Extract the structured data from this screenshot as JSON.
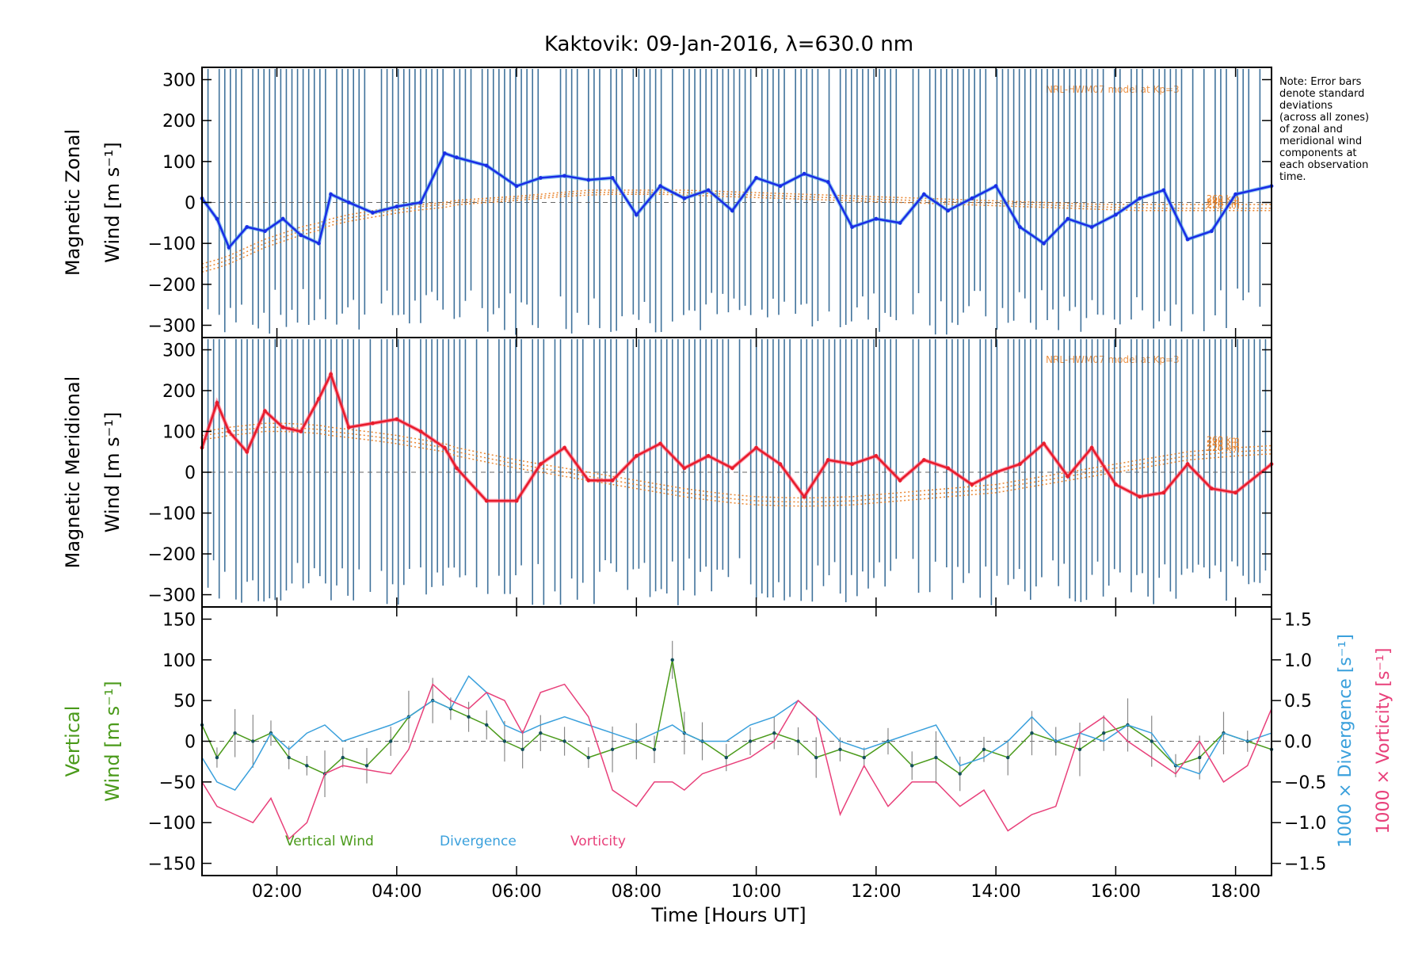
{
  "figure": {
    "title": "Kaktovik: 09-Jan-2016, λ=630.0 nm",
    "note": [
      "Note: Error bars",
      "denote standard",
      "deviations",
      "(across all zones)",
      "of zonal and",
      "meridional wind",
      "components at",
      "each observation",
      "time."
    ],
    "xlabel": "Time [Hours UT]",
    "xticks": [
      "02:00",
      "04:00",
      "06:00",
      "08:00",
      "10:00",
      "12:00",
      "14:00",
      "16:00",
      "18:00"
    ],
    "xlim_hours": [
      0.75,
      18.6
    ],
    "model_label": "NRL-HWM07 model at Kp=3",
    "model_alt_labels": [
      "260 km",
      "240 km",
      "220 km"
    ],
    "colors": {
      "zonal": "#1a2ee6",
      "zonal_alt": "#4aa8e8",
      "meridional": "#e81c2c",
      "meridional_alt": "#ff5a78",
      "errorbar": "#1f5a8a",
      "model": "#e87a1c",
      "vertical": "#4a9a1a",
      "divergence": "#3aa0dc",
      "vorticity": "#e8407a"
    }
  },
  "chart_data": [
    {
      "type": "line",
      "panel": "zonal",
      "ylabel": [
        "Magnetic Zonal",
        "Wind [m s⁻¹]"
      ],
      "ylim": [
        -330,
        330
      ],
      "yticks": [
        "300",
        "200",
        "100",
        "0",
        "−100",
        "−200",
        "−300"
      ],
      "ytick_values": [
        300,
        200,
        100,
        0,
        -100,
        -200,
        -300
      ],
      "x_hours": [
        0.75,
        1.0,
        1.2,
        1.5,
        1.8,
        2.1,
        2.4,
        2.7,
        2.9,
        3.2,
        3.6,
        4.0,
        4.4,
        4.8,
        5.0,
        5.5,
        6.0,
        6.4,
        6.8,
        7.2,
        7.6,
        8.0,
        8.4,
        8.8,
        9.2,
        9.6,
        10.0,
        10.4,
        10.8,
        11.2,
        11.6,
        12.0,
        12.4,
        12.8,
        13.2,
        13.6,
        14.0,
        14.4,
        14.8,
        15.2,
        15.6,
        16.0,
        16.4,
        16.8,
        17.2,
        17.6,
        18.0,
        18.6
      ],
      "values": [
        10,
        -40,
        -110,
        -60,
        -70,
        -40,
        -80,
        -100,
        20,
        0,
        -25,
        -10,
        0,
        120,
        110,
        90,
        40,
        60,
        65,
        55,
        60,
        -30,
        40,
        10,
        30,
        -20,
        60,
        40,
        70,
        50,
        -60,
        -40,
        -50,
        20,
        -20,
        10,
        40,
        -60,
        -100,
        -40,
        -60,
        -30,
        10,
        30,
        -90,
        -70,
        20,
        40
      ],
      "model_series": [
        {
          "name": "260 km",
          "values": [
            -150,
            -140,
            -130,
            -110,
            -90,
            -75,
            -60,
            -50,
            -40,
            -30,
            -20,
            -10,
            -5,
            0,
            5,
            10,
            15,
            20,
            25,
            30,
            30,
            30,
            30,
            30,
            28,
            26,
            24,
            22,
            20,
            18,
            16,
            14,
            12,
            10,
            8,
            6,
            4,
            2,
            0,
            -2,
            -4,
            -5,
            -5,
            -5,
            -5,
            -5,
            -5,
            -5
          ]
        },
        {
          "name": "240 km",
          "values": [
            -160,
            -150,
            -140,
            -120,
            -100,
            -85,
            -70,
            -60,
            -48,
            -38,
            -28,
            -18,
            -10,
            -5,
            0,
            5,
            10,
            15,
            20,
            24,
            25,
            25,
            25,
            24,
            22,
            20,
            18,
            16,
            14,
            12,
            10,
            8,
            6,
            4,
            2,
            0,
            -2,
            -4,
            -6,
            -8,
            -10,
            -12,
            -13,
            -14,
            -14,
            -14,
            -14,
            -14
          ]
        },
        {
          "name": "220 km",
          "values": [
            -170,
            -160,
            -150,
            -130,
            -110,
            -95,
            -80,
            -68,
            -56,
            -46,
            -36,
            -26,
            -18,
            -12,
            -6,
            0,
            5,
            10,
            15,
            18,
            20,
            20,
            20,
            18,
            16,
            14,
            12,
            10,
            8,
            6,
            4,
            2,
            0,
            -2,
            -4,
            -6,
            -8,
            -10,
            -12,
            -14,
            -16,
            -18,
            -20,
            -20,
            -20,
            -20,
            -20,
            -20
          ]
        }
      ]
    },
    {
      "type": "line",
      "panel": "meridional",
      "ylabel": [
        "Magnetic Meridional",
        "Wind [m s⁻¹]"
      ],
      "ylim": [
        -330,
        330
      ],
      "yticks": [
        "300",
        "200",
        "100",
        "0",
        "−100",
        "−200",
        "−300"
      ],
      "ytick_values": [
        300,
        200,
        100,
        0,
        -100,
        -200,
        -300
      ],
      "x_hours": [
        0.75,
        1.0,
        1.2,
        1.5,
        1.8,
        2.1,
        2.4,
        2.7,
        2.9,
        3.2,
        3.6,
        4.0,
        4.4,
        4.8,
        5.0,
        5.5,
        6.0,
        6.4,
        6.8,
        7.2,
        7.6,
        8.0,
        8.4,
        8.8,
        9.2,
        9.6,
        10.0,
        10.4,
        10.8,
        11.2,
        11.6,
        12.0,
        12.4,
        12.8,
        13.2,
        13.6,
        14.0,
        14.4,
        14.8,
        15.2,
        15.6,
        16.0,
        16.4,
        16.8,
        17.2,
        17.6,
        18.0,
        18.6
      ],
      "values": [
        60,
        170,
        100,
        50,
        150,
        110,
        100,
        180,
        240,
        110,
        120,
        130,
        100,
        60,
        10,
        -70,
        -70,
        20,
        60,
        -20,
        -20,
        40,
        70,
        10,
        40,
        10,
        60,
        20,
        -60,
        30,
        20,
        40,
        -20,
        30,
        10,
        -30,
        0,
        20,
        70,
        -10,
        60,
        -30,
        -60,
        -50,
        20,
        -40,
        -50,
        20
      ],
      "model_series": [
        {
          "name": "260 km",
          "values": [
            100,
            105,
            110,
            115,
            120,
            120,
            118,
            115,
            110,
            105,
            98,
            90,
            80,
            70,
            60,
            45,
            30,
            20,
            10,
            0,
            -10,
            -20,
            -30,
            -40,
            -48,
            -55,
            -60,
            -62,
            -63,
            -62,
            -60,
            -55,
            -50,
            -45,
            -40,
            -35,
            -30,
            -20,
            -10,
            0,
            10,
            20,
            30,
            40,
            50,
            55,
            60,
            65
          ]
        },
        {
          "name": "240 km",
          "values": [
            90,
            95,
            100,
            105,
            110,
            110,
            108,
            105,
            100,
            95,
            88,
            80,
            70,
            60,
            50,
            35,
            20,
            10,
            0,
            -10,
            -20,
            -30,
            -40,
            -50,
            -58,
            -65,
            -70,
            -72,
            -73,
            -72,
            -70,
            -65,
            -60,
            -55,
            -50,
            -45,
            -40,
            -30,
            -20,
            -10,
            0,
            10,
            20,
            30,
            40,
            45,
            50,
            55
          ]
        },
        {
          "name": "220 km",
          "values": [
            80,
            85,
            90,
            95,
            100,
            100,
            98,
            95,
            90,
            85,
            78,
            70,
            60,
            50,
            40,
            25,
            10,
            0,
            -10,
            -20,
            -30,
            -40,
            -50,
            -60,
            -68,
            -75,
            -80,
            -82,
            -83,
            -82,
            -80,
            -75,
            -70,
            -65,
            -60,
            -55,
            -50,
            -40,
            -30,
            -20,
            -10,
            0,
            10,
            20,
            30,
            35,
            40,
            45
          ]
        }
      ]
    },
    {
      "type": "line",
      "panel": "vertical",
      "ylabel": [
        "Vertical",
        "Wind [m s⁻¹]"
      ],
      "ylim": [
        -165,
        165
      ],
      "yticks": [
        "150",
        "100",
        "50",
        "0",
        "−50",
        "−100",
        "−150"
      ],
      "ytick_values": [
        150,
        100,
        50,
        0,
        -50,
        -100,
        -150
      ],
      "right_ylabel_1": "1000 × Divergence [s⁻¹]",
      "right_ylabel_2": "1000 × Vorticity [s⁻¹]",
      "right_ylim": [
        -1.65,
        1.65
      ],
      "right_yticks": [
        "1.5",
        "1.0",
        "0.5",
        "0.0",
        "−0.5",
        "−1.0",
        "−1.5"
      ],
      "right_ytick_values": [
        1.5,
        1.0,
        0.5,
        0.0,
        -0.5,
        -1.0,
        -1.5
      ],
      "legend": [
        "Vertical Wind",
        "Divergence",
        "Vorticity"
      ],
      "x_hours": [
        0.75,
        1.0,
        1.3,
        1.6,
        1.9,
        2.2,
        2.5,
        2.8,
        3.1,
        3.5,
        3.9,
        4.2,
        4.6,
        4.9,
        5.2,
        5.5,
        5.8,
        6.1,
        6.4,
        6.8,
        7.2,
        7.6,
        8.0,
        8.3,
        8.6,
        8.8,
        9.1,
        9.5,
        9.9,
        10.3,
        10.7,
        11.0,
        11.4,
        11.8,
        12.2,
        12.6,
        13.0,
        13.4,
        13.8,
        14.2,
        14.6,
        15.0,
        15.4,
        15.8,
        16.2,
        16.6,
        17.0,
        17.4,
        17.8,
        18.2,
        18.6
      ],
      "series": [
        {
          "name": "Vertical Wind",
          "axis": "left",
          "values": [
            20,
            -20,
            10,
            0,
            10,
            -20,
            -30,
            -40,
            -20,
            -30,
            0,
            30,
            50,
            40,
            30,
            20,
            0,
            -10,
            10,
            0,
            -20,
            -10,
            0,
            -10,
            100,
            10,
            0,
            -20,
            0,
            10,
            0,
            -20,
            -10,
            -20,
            0,
            -30,
            -20,
            -40,
            -10,
            -20,
            10,
            0,
            -10,
            10,
            20,
            0,
            -30,
            -20,
            10,
            0,
            -10
          ]
        },
        {
          "name": "Divergence",
          "axis": "right",
          "values": [
            -0.2,
            -0.5,
            -0.6,
            -0.3,
            0.1,
            -0.1,
            0.1,
            0.2,
            0.0,
            0.1,
            0.2,
            0.3,
            0.5,
            0.4,
            0.8,
            0.6,
            0.2,
            0.1,
            0.2,
            0.3,
            0.2,
            0.1,
            0.0,
            0.1,
            0.2,
            0.1,
            0.0,
            0.0,
            0.2,
            0.3,
            0.5,
            0.3,
            0.0,
            -0.1,
            0.0,
            0.1,
            0.2,
            -0.3,
            -0.2,
            0.0,
            0.3,
            0.0,
            0.1,
            0.0,
            0.2,
            0.1,
            -0.3,
            -0.4,
            0.1,
            0.0,
            0.1
          ]
        },
        {
          "name": "Vorticity",
          "axis": "right",
          "values": [
            -0.5,
            -0.8,
            -0.9,
            -1.0,
            -0.7,
            -1.2,
            -1.0,
            -0.4,
            -0.3,
            -0.35,
            -0.4,
            -0.1,
            0.7,
            0.5,
            0.4,
            0.6,
            0.5,
            0.1,
            0.6,
            0.7,
            0.3,
            -0.6,
            -0.8,
            -0.5,
            -0.5,
            -0.6,
            -0.4,
            -0.3,
            -0.2,
            0.0,
            0.5,
            0.3,
            -0.9,
            -0.3,
            -0.8,
            -0.5,
            -0.5,
            -0.8,
            -0.6,
            -1.1,
            -0.9,
            -0.8,
            0.1,
            0.3,
            0.0,
            -0.2,
            -0.4,
            0.0,
            -0.5,
            -0.3,
            0.4
          ]
        }
      ]
    }
  ]
}
